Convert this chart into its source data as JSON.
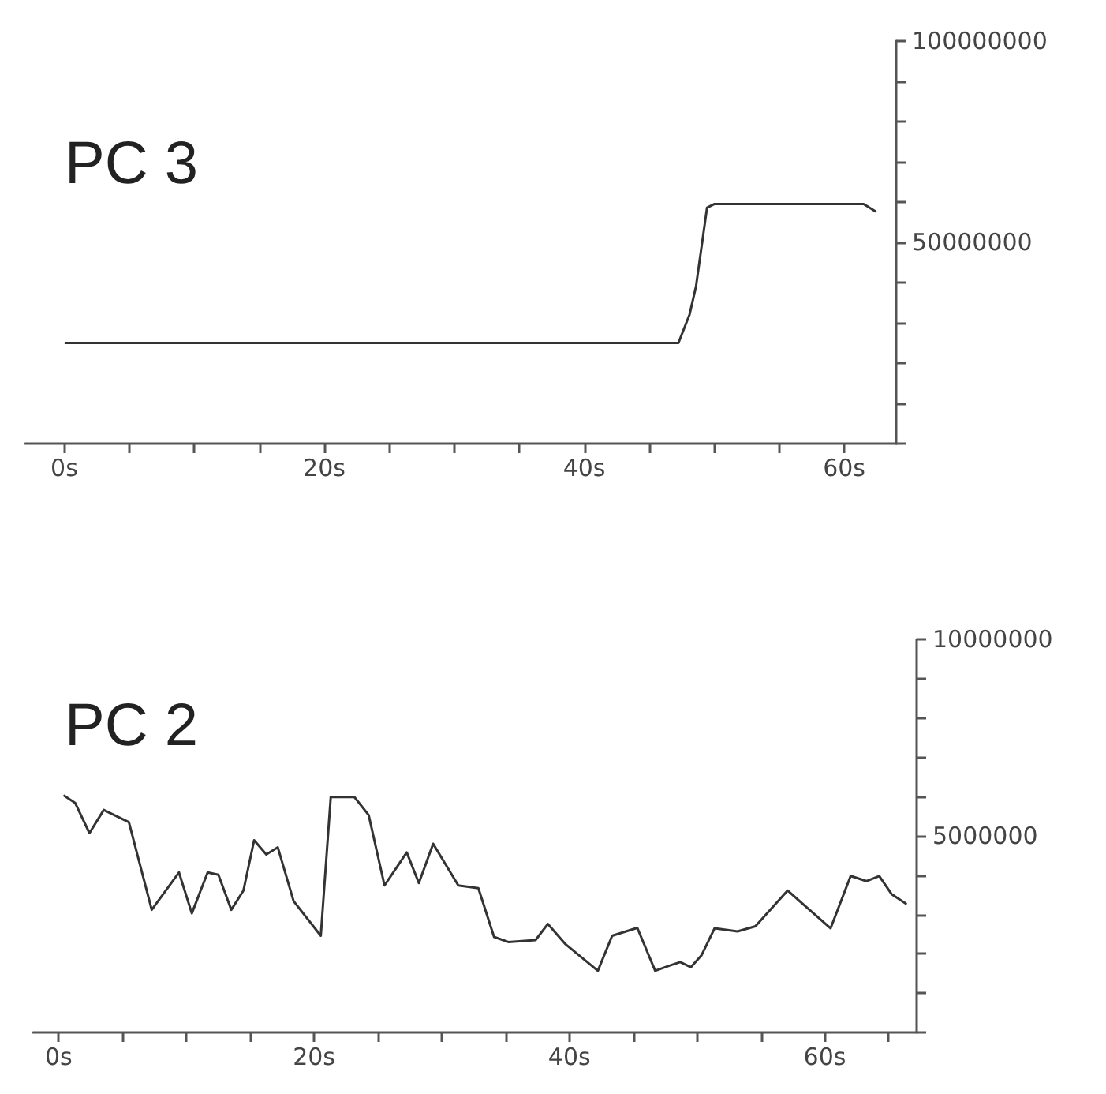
{
  "chart_data": [
    {
      "type": "line",
      "title": "PC 3",
      "x": [
        0.1,
        47.25,
        48.1,
        48.6,
        49.45,
        50,
        61.5,
        62.4
      ],
      "series": [
        {
          "color": "#333333",
          "values": [
            25000000,
            25000000,
            32000000,
            39000000,
            58600000,
            59500000,
            59500000,
            57700000
          ]
        }
      ],
      "xlim": [
        -3,
        64
      ],
      "xticks": [
        {
          "value": 0,
          "label": "0s"
        },
        {
          "value": 5,
          "label": null
        },
        {
          "value": 10,
          "label": null
        },
        {
          "value": 15,
          "label": null
        },
        {
          "value": 20,
          "label": "20s"
        },
        {
          "value": 25,
          "label": null
        },
        {
          "value": 30,
          "label": null
        },
        {
          "value": 35,
          "label": null
        },
        {
          "value": 40,
          "label": "40s"
        },
        {
          "value": 45,
          "label": null
        },
        {
          "value": 50,
          "label": null
        },
        {
          "value": 55,
          "label": null
        },
        {
          "value": 60,
          "label": "60s"
        }
      ],
      "ylim": [
        0,
        100000000
      ],
      "yticks": [
        {
          "value": 0,
          "label": null
        },
        {
          "value": 10000000,
          "label": null
        },
        {
          "value": 20000000,
          "label": null
        },
        {
          "value": 30000000,
          "label": null
        },
        {
          "value": 40000000,
          "label": null
        },
        50000000,
        {
          "value": 60000000,
          "label": null
        },
        {
          "value": 70000000,
          "label": null
        },
        {
          "value": 80000000,
          "label": null
        },
        {
          "value": 90000000,
          "label": null
        },
        100000000
      ],
      "grid": false,
      "marker": "none",
      "line_style": "solid"
    },
    {
      "type": "line",
      "title": "PC 2",
      "x": [
        0.45,
        1.29,
        2.41,
        3.53,
        5.5,
        7.29,
        9.42,
        10.43,
        11.67,
        12.51,
        13.52,
        14.47,
        15.31,
        16.26,
        17.16,
        18.4,
        20.53,
        21.31,
        23.16,
        24.28,
        25.52,
        27.26,
        28.21,
        29.33,
        31.3,
        32.87,
        34.1,
        35.22,
        37.35,
        38.31,
        39.71,
        42.23,
        43.35,
        45.32,
        46.72,
        47.84,
        48.68,
        49.52,
        50.36,
        51.37,
        53.17,
        54.57,
        57.09,
        60.46,
        62.03,
        63.26,
        64.27,
        65.23,
        66.35
      ],
      "series": [
        {
          "color": "#333333",
          "values": [
            6020000,
            5840000,
            5070000,
            5660000,
            5350000,
            3120000,
            4070000,
            3030000,
            4070000,
            4010000,
            3120000,
            3610000,
            4890000,
            4530000,
            4710000,
            3340000,
            2460000,
            5990000,
            5990000,
            5530000,
            3740000,
            4580000,
            3800000,
            4800000,
            3740000,
            3670000,
            2430000,
            2300000,
            2350000,
            2760000,
            2240000,
            1570000,
            2460000,
            2660000,
            1570000,
            1700000,
            1790000,
            1660000,
            1970000,
            2650000,
            2570000,
            2700000,
            3610000,
            2650000,
            3980000,
            3850000,
            3980000,
            3520000,
            3280000
          ]
        }
      ],
      "xlim": [
        -2,
        67.2
      ],
      "xticks": [
        {
          "value": 0,
          "label": "0s"
        },
        {
          "value": 5,
          "label": null
        },
        {
          "value": 10,
          "label": null
        },
        {
          "value": 15,
          "label": null
        },
        {
          "value": 20,
          "label": "20s"
        },
        {
          "value": 25,
          "label": null
        },
        {
          "value": 30,
          "label": null
        },
        {
          "value": 35,
          "label": null
        },
        {
          "value": 40,
          "label": "40s"
        },
        {
          "value": 45,
          "label": null
        },
        {
          "value": 50,
          "label": null
        },
        {
          "value": 55,
          "label": null
        },
        {
          "value": 60,
          "label": "60s"
        },
        {
          "value": 65,
          "label": null
        }
      ],
      "ylim": [
        0,
        10000000
      ],
      "yticks": [
        {
          "value": 0,
          "label": null
        },
        {
          "value": 1000000,
          "label": null
        },
        {
          "value": 2000000,
          "label": null
        },
        {
          "value": 3000000,
          "label": null
        },
        {
          "value": 4000000,
          "label": null
        },
        5000000,
        {
          "value": 6000000,
          "label": null
        },
        {
          "value": 7000000,
          "label": null
        },
        {
          "value": 8000000,
          "label": null
        },
        {
          "value": 9000000,
          "label": null
        },
        10000000
      ],
      "grid": false,
      "marker": "none",
      "line_style": "solid"
    }
  ]
}
